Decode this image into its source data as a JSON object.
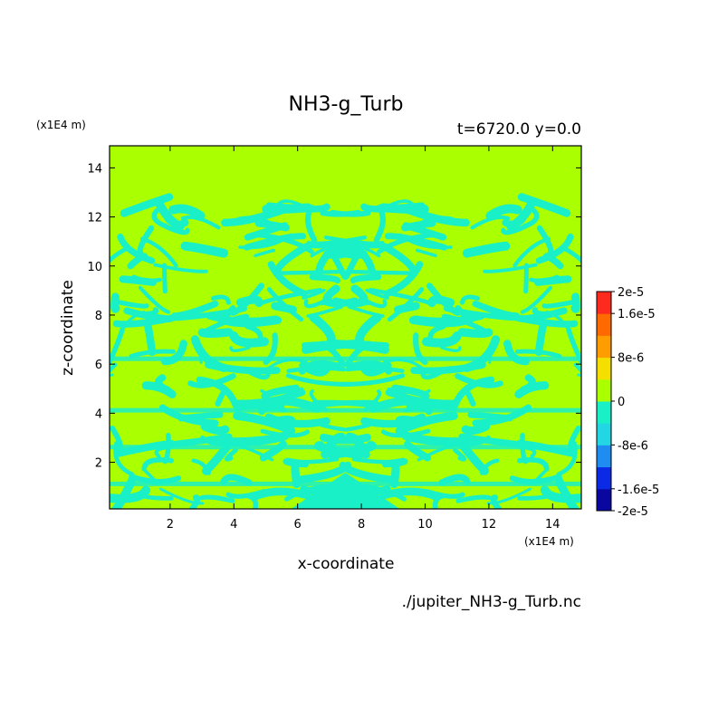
{
  "chart_data": {
    "type": "heatmap",
    "title": "NH3-g_Turb",
    "subtitle": "t=6720.0 y=0.0",
    "xlabel": "x-coordinate",
    "ylabel": "z-coordinate",
    "x_unit": "(x1E4 m)",
    "y_unit": "(x1E4 m)",
    "source": "./jupiter_NH3-g_Turb.nc",
    "xlim": [
      0.1,
      14.9
    ],
    "ylim": [
      0.1,
      14.9
    ],
    "x_ticks": [
      2,
      4,
      6,
      8,
      10,
      12,
      14
    ],
    "y_ticks": [
      2,
      4,
      6,
      8,
      10,
      12,
      14
    ],
    "field_description": "Turbulent pattern mirrored about x=7.5: background value 0 (yellow-green) above z≈12.5; mixed 0 and slightly negative (cyan) filaments between z≈0.1 and z≈12.5",
    "colorbar": {
      "levels": [
        -2e-05,
        -1.6e-05,
        -1.2e-05,
        -8e-06,
        -4e-06,
        0,
        4e-06,
        8e-06,
        1.2e-05,
        1.6e-05,
        2e-05
      ],
      "tick_labels": [
        "2e-5",
        "1.6e-5",
        "8e-6",
        "0",
        "-8e-6",
        "-1.6e-5",
        "-2e-5"
      ],
      "tick_values": [
        2e-05,
        1.6e-05,
        8e-06,
        0,
        -8e-06,
        -1.6e-05,
        -2e-05
      ],
      "colors": [
        "#0a07a0",
        "#0a2ae6",
        "#1e8cf0",
        "#22d6e4",
        "#19f0c8",
        "#aaff00",
        "#f5df00",
        "#ff9d00",
        "#ff6a00",
        "#ff2a1e"
      ],
      "dominant_values": {
        "background": 0,
        "filaments": -4e-06
      }
    }
  }
}
